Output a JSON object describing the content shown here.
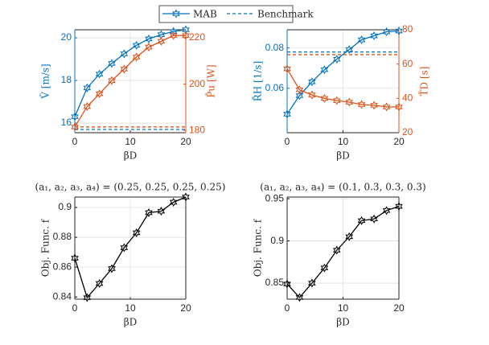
{
  "legend": {
    "entries": [
      {
        "name": "MAB",
        "style": "solid"
      },
      {
        "name": "Benchmark",
        "style": "dashed"
      }
    ],
    "color": "#0072bd"
  },
  "chart_data": [
    {
      "type": "line",
      "xlabel": "βD",
      "ylabel": "V̄ [m/s]",
      "y2label": "P̄u [W]",
      "x": [
        0,
        2.22,
        4.44,
        6.67,
        8.89,
        11.11,
        13.33,
        15.56,
        17.78,
        20
      ],
      "xlim": [
        0,
        20
      ],
      "xticks": [
        0,
        10,
        20
      ],
      "ylim": [
        15.55,
        20.38
      ],
      "yticks": [
        16,
        18,
        20
      ],
      "y2lim": [
        179,
        223.5
      ],
      "y2ticks": [
        180,
        200,
        220
      ],
      "grid": true,
      "series": [
        {
          "color": "#0072bd",
          "axis": "y",
          "values": [
            16.3,
            17.65,
            18.3,
            18.8,
            19.25,
            19.65,
            19.95,
            20.15,
            20.3,
            20.38
          ]
        },
        {
          "color": "#d95319",
          "axis": "y2",
          "values": [
            181.5,
            190.3,
            195.8,
            201.5,
            206.5,
            211.7,
            216,
            218.5,
            221,
            221
          ]
        }
      ],
      "benchmarks": [
        {
          "color": "#0072bd",
          "axis": "y",
          "value": 15.7
        },
        {
          "color": "#d95319",
          "axis": "y2",
          "value": 181.5
        }
      ]
    },
    {
      "type": "line",
      "xlabel": "βD",
      "ylabel": "R̄H [1/s]",
      "y2label": "T̄D [s]",
      "x": [
        0,
        2.22,
        4.44,
        6.67,
        8.89,
        11.11,
        13.33,
        15.56,
        17.78,
        20
      ],
      "xlim": [
        0,
        20
      ],
      "xticks": [
        0,
        10,
        20
      ],
      "ylim": [
        0.038,
        0.089
      ],
      "yticks": [
        0.06,
        0.08
      ],
      "y2lim": [
        20,
        80
      ],
      "y2ticks": [
        20,
        40,
        60,
        80
      ],
      "grid": true,
      "series": [
        {
          "color": "#0072bd",
          "axis": "y",
          "values": [
            0.0472,
            0.0564,
            0.0632,
            0.0692,
            0.0744,
            0.0792,
            0.084,
            0.086,
            0.088,
            0.0884
          ]
        },
        {
          "color": "#d95319",
          "axis": "y2",
          "values": [
            57.2,
            45,
            42,
            40,
            38.7,
            37.8,
            36.4,
            36,
            35,
            35
          ]
        }
      ],
      "benchmarks": [
        {
          "color": "#0072bd",
          "axis": "y",
          "value": 0.078
        },
        {
          "color": "#d95319",
          "axis": "y2",
          "value": 65.5
        }
      ]
    },
    {
      "type": "line",
      "title": "(a₁, a₂, a₃, a₄) = (0.25, 0.25, 0.25, 0.25)",
      "xlabel": "βD",
      "ylabel": "Obj. Func. f",
      "x": [
        0,
        2.22,
        4.44,
        6.67,
        8.89,
        11.11,
        13.33,
        15.56,
        17.78,
        20
      ],
      "xlim": [
        0,
        20
      ],
      "xticks": [
        0,
        10,
        20
      ],
      "ylim": [
        0.8385,
        0.907
      ],
      "yticks": [
        0.84,
        0.86,
        0.88,
        0.9
      ],
      "grid": true,
      "series": [
        {
          "color": "#000000",
          "axis": "y",
          "values": [
            0.866,
            0.8395,
            0.849,
            0.859,
            0.873,
            0.883,
            0.8965,
            0.8975,
            0.9035,
            0.907
          ]
        }
      ]
    },
    {
      "type": "line",
      "title": "(a₁, a₂, a₃, a₄) = (0.1, 0.3, 0.3, 0.3)",
      "xlabel": "βD",
      "ylabel": "Obj. Func. f",
      "x": [
        0,
        2.22,
        4.44,
        6.67,
        8.89,
        11.11,
        13.33,
        15.56,
        17.78,
        20
      ],
      "xlim": [
        0,
        20
      ],
      "xticks": [
        0,
        10,
        20
      ],
      "ylim": [
        0.831,
        0.952
      ],
      "yticks": [
        0.85,
        0.9,
        0.95
      ],
      "grid": true,
      "series": [
        {
          "color": "#000000",
          "axis": "y",
          "values": [
            0.849,
            0.833,
            0.85,
            0.868,
            0.889,
            0.905,
            0.924,
            0.926,
            0.936,
            0.941
          ]
        }
      ]
    }
  ]
}
